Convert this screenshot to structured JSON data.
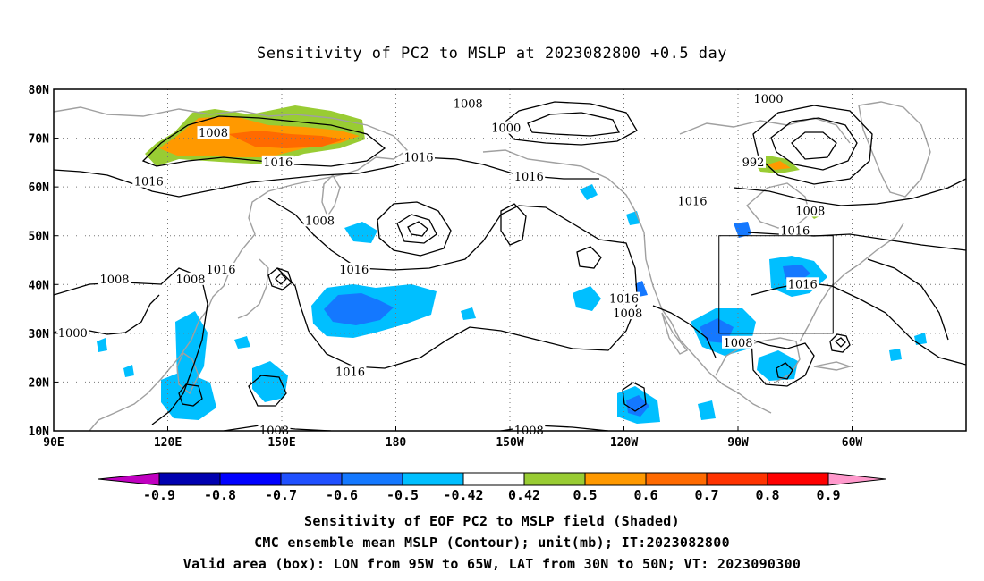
{
  "title": "Sensitivity of PC2 to MSLP at 2023082800 +0.5 day",
  "map": {
    "lon_ticks": [
      "90E",
      "120E",
      "150E",
      "180",
      "150W",
      "120W",
      "90W",
      "60W"
    ],
    "lat_ticks": [
      "80N",
      "70N",
      "60N",
      "50N",
      "40N",
      "30N",
      "20N",
      "10N"
    ],
    "grid": "dotted",
    "valid_box": {
      "lon": [
        "95W",
        "65W"
      ],
      "lat": [
        "30N",
        "50N"
      ]
    },
    "contour_labels": [
      {
        "value": "1008",
        "lon": 132,
        "lat": 71
      },
      {
        "value": "1016",
        "lon": 115,
        "lat": 61
      },
      {
        "value": "1016",
        "lon": 149,
        "lat": 65
      },
      {
        "value": "1016",
        "lon": 186,
        "lat": 66
      },
      {
        "value": "1008",
        "lon": 199,
        "lat": 77
      },
      {
        "value": "1000",
        "lon": 209,
        "lat": 72
      },
      {
        "value": "1016",
        "lon": 215,
        "lat": 62
      },
      {
        "value": "1000",
        "lon": 278,
        "lat": 78
      },
      {
        "value": "992",
        "lon": 274,
        "lat": 65
      },
      {
        "value": "1016",
        "lon": 258,
        "lat": 57
      },
      {
        "value": "1008",
        "lon": 289,
        "lat": 55
      },
      {
        "value": "1016",
        "lon": 285,
        "lat": 51
      },
      {
        "value": "1016",
        "lon": 287,
        "lat": 40
      },
      {
        "value": "1008",
        "lon": 160,
        "lat": 53
      },
      {
        "value": "1016",
        "lon": 169,
        "lat": 43
      },
      {
        "value": "1016",
        "lon": 168,
        "lat": 22
      },
      {
        "value": "1016",
        "lon": 134,
        "lat": 43
      },
      {
        "value": "1008",
        "lon": 106,
        "lat": 41
      },
      {
        "value": "1008",
        "lon": 126,
        "lat": 41
      },
      {
        "value": "1000",
        "lon": 95,
        "lat": 30
      },
      {
        "value": "1008",
        "lon": 148,
        "lat": 10
      },
      {
        "value": "1008",
        "lon": 215,
        "lat": 10
      },
      {
        "value": "1016",
        "lon": 240,
        "lat": 37
      },
      {
        "value": "1008",
        "lon": 241,
        "lat": 34
      },
      {
        "value": "1008",
        "lon": 270,
        "lat": 28
      }
    ]
  },
  "colorbar": {
    "labels": [
      "-0.9",
      "-0.8",
      "-0.7",
      "-0.6",
      "-0.5",
      "-0.42",
      "0.42",
      "0.5",
      "0.6",
      "0.7",
      "0.8",
      "0.9"
    ],
    "colors": [
      "#c000c0",
      "#0000b0",
      "#0000ff",
      "#2050ff",
      "#1478ff",
      "#00bfff",
      "#ffffff",
      "#99cc33",
      "#ff9900",
      "#ff6a00",
      "#ff3300",
      "#ff0000",
      "#ff99cc"
    ]
  },
  "captions": [
    "Sensitivity of EOF PC2 to MSLP field (Shaded)",
    "CMC ensemble mean MSLP (Contour); unit(mb); IT:2023082800",
    "Valid area (box): LON from 95W to 65W, LAT from 30N to 50N; VT: 2023090300"
  ]
}
